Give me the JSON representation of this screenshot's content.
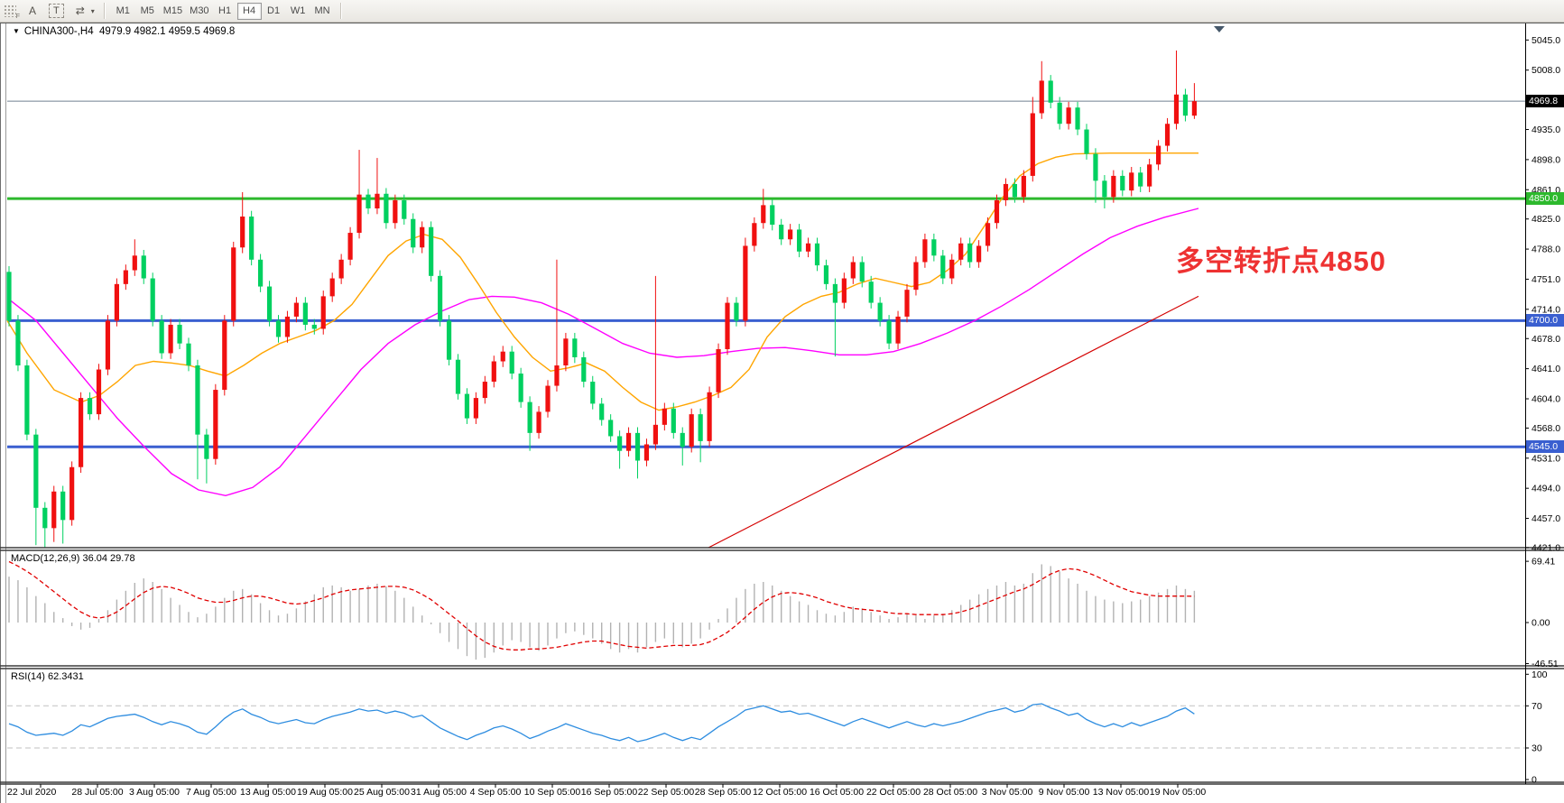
{
  "toolbar": {
    "drag_handle_label": "F",
    "buttons": [
      {
        "label": "A"
      },
      {
        "label": "T"
      },
      {
        "label": "⇄"
      },
      {
        "label": "▾"
      }
    ],
    "active_timeframe": "H4",
    "timeframes": [
      {
        "label": "M1"
      },
      {
        "label": "M5"
      },
      {
        "label": "M15"
      },
      {
        "label": "M30"
      },
      {
        "label": "H1"
      },
      {
        "label": "H4"
      },
      {
        "label": "D1"
      },
      {
        "label": "W1"
      },
      {
        "label": "MN"
      }
    ]
  },
  "chart": {
    "title_marker": "▼",
    "title_symbol": "CHINA300-,H4",
    "title_ohlc": "4979.9 4982.1 4959.5 4969.8",
    "shift_marker": "▼"
  },
  "annotation": {
    "text": "多空转折点4850",
    "color": "#ee3232"
  },
  "levels": {
    "current": {
      "label": "4969.8",
      "price": 4969.8,
      "color": "#000000",
      "line_color": "#708090"
    },
    "resistance_green": {
      "label": "4850.0",
      "price": 4850,
      "color": "#2db92d"
    },
    "support_blue_1": {
      "label": "4700.0",
      "price": 4700,
      "color": "#3a5fd0"
    },
    "support_blue_2": {
      "label": "4545.0",
      "price": 4545,
      "color": "#3a5fd0"
    }
  },
  "price_axis": {
    "ticks": [
      {
        "label": "5045.0",
        "price": 5045
      },
      {
        "label": "5008.0",
        "price": 5008
      },
      {
        "label": "4935.0",
        "price": 4935
      },
      {
        "label": "4898.0",
        "price": 4898
      },
      {
        "label": "4861.0",
        "price": 4861
      },
      {
        "label": "4825.0",
        "price": 4825
      },
      {
        "label": "4788.0",
        "price": 4788
      },
      {
        "label": "4751.0",
        "price": 4751
      },
      {
        "label": "4714.0",
        "price": 4714
      },
      {
        "label": "4678.0",
        "price": 4678
      },
      {
        "label": "4641.0",
        "price": 4641
      },
      {
        "label": "4604.0",
        "price": 4604
      },
      {
        "label": "4568.0",
        "price": 4568
      },
      {
        "label": "4531.0",
        "price": 4531
      },
      {
        "label": "4494.0",
        "price": 4494
      },
      {
        "label": "4457.0",
        "price": 4457
      },
      {
        "label": "4421.0",
        "price": 4421
      }
    ]
  },
  "time_axis": {
    "labels": [
      "22 Jul 2020",
      "28 Jul 05:00",
      "3 Aug 05:00",
      "7 Aug 05:00",
      "13 Aug 05:00",
      "19 Aug 05:00",
      "25 Aug 05:00",
      "31 Aug 05:00",
      "4 Sep 05:00",
      "10 Sep 05:00",
      "16 Sep 05:00",
      "22 Sep 05:00",
      "28 Sep 05:00",
      "12 Oct 05:00",
      "16 Oct 05:00",
      "22 Oct 05:00",
      "28 Oct 05:00",
      "3 Nov 05:00",
      "9 Nov 05:00",
      "13 Nov 05:00",
      "19 Nov 05:00"
    ]
  },
  "macd_panel": {
    "title": "MACD(12,26,9) 36.04 29.78",
    "axis": [
      {
        "label": "69.41",
        "value": 69.41
      },
      {
        "label": "0.00",
        "value": 0
      },
      {
        "label": "-46.51",
        "value": -46.51
      }
    ]
  },
  "rsi_panel": {
    "title": "RSI(14) 62.3431",
    "axis": [
      {
        "label": "100",
        "value": 100
      },
      {
        "label": "70",
        "value": 70
      },
      {
        "label": "30",
        "value": 30
      },
      {
        "label": "0",
        "value": 0
      }
    ],
    "dashed_levels": [
      70,
      30
    ]
  },
  "chart_data": {
    "type": "candlestick",
    "symbol": "CHINA300-",
    "period": "H4",
    "title": "CHINA300-,H4 4979.9 4982.1 4959.5 4969.8",
    "open": 4979.9,
    "high": 4982.1,
    "low": 4959.5,
    "close": 4969.8,
    "ylim": [
      4421,
      5045
    ],
    "candles": {
      "first_open": 4760,
      "default_wick": 7,
      "closes": [
        4700,
        4645,
        4560,
        4470,
        4445,
        4490,
        4455,
        4520,
        4605,
        4585,
        4640,
        4700,
        4745,
        4762,
        4780,
        4752,
        4700,
        4660,
        4695,
        4672,
        4645,
        4560,
        4530,
        4615,
        4700,
        4790,
        4828,
        4775,
        4742,
        4700,
        4680,
        4705,
        4722,
        4695,
        4690,
        4730,
        4752,
        4775,
        4808,
        4855,
        4838,
        4856,
        4820,
        4848,
        4825,
        4790,
        4815,
        4755,
        4700,
        4652,
        4610,
        4580,
        4605,
        4625,
        4650,
        4662,
        4635,
        4600,
        4562,
        4588,
        4620,
        4645,
        4678,
        4655,
        4625,
        4598,
        4578,
        4558,
        4540,
        4562,
        4528,
        4548,
        4572,
        4592,
        4562,
        4545,
        4585,
        4552,
        4612,
        4665,
        4722,
        4700,
        4792,
        4820,
        4842,
        4818,
        4800,
        4812,
        4785,
        4795,
        4768,
        4745,
        4722,
        4752,
        4772,
        4748,
        4722,
        4700,
        4672,
        4705,
        4738,
        4772,
        4800,
        4780,
        4752,
        4775,
        4795,
        4772,
        4792,
        4820,
        4848,
        4868,
        4852,
        4878,
        4955,
        4995,
        4968,
        4942,
        4962,
        4935,
        4905,
        4872,
        4852,
        4878,
        4860,
        4882,
        4865,
        4892,
        4915,
        4942,
        4978,
        4952,
        4969.8
      ],
      "wick_overrides": {
        "3": {
          "low": 4424
        },
        "4": {
          "low": 4421
        },
        "5": {
          "low": 4428
        },
        "6": {
          "low": 4426
        },
        "14": {
          "high": 4800
        },
        "21": {
          "low": 4505
        },
        "22": {
          "low": 4500
        },
        "26": {
          "high": 4858
        },
        "39": {
          "high": 4910
        },
        "41": {
          "high": 4900
        },
        "58": {
          "low": 4540
        },
        "61": {
          "high": 4775
        },
        "68": {
          "low": 4518
        },
        "70": {
          "low": 4506
        },
        "72": {
          "high": 4755
        },
        "75": {
          "low": 4522
        },
        "77": {
          "low": 4526
        },
        "82": {
          "high": 4802
        },
        "84": {
          "high": 4862
        },
        "92": {
          "low": 4656
        },
        "114": {
          "high": 4975
        },
        "115": {
          "high": 5019
        },
        "121": {
          "low": 4845
        },
        "122": {
          "low": 4838
        },
        "130": {
          "high": 5032
        },
        "132": {
          "high": 4992,
          "low": 4948
        }
      },
      "bull_color": "#f01010",
      "bear_color": "#00d060"
    },
    "ma_fast_orange": [
      [
        8,
        4700
      ],
      [
        30,
        4660
      ],
      [
        60,
        4615
      ],
      [
        90,
        4600
      ],
      [
        110,
        4608
      ],
      [
        130,
        4625
      ],
      [
        150,
        4645
      ],
      [
        170,
        4650
      ],
      [
        190,
        4648
      ],
      [
        210,
        4645
      ],
      [
        230,
        4638
      ],
      [
        250,
        4632
      ],
      [
        270,
        4645
      ],
      [
        290,
        4660
      ],
      [
        310,
        4672
      ],
      [
        330,
        4680
      ],
      [
        350,
        4688
      ],
      [
        370,
        4700
      ],
      [
        390,
        4720
      ],
      [
        410,
        4750
      ],
      [
        430,
        4780
      ],
      [
        450,
        4798
      ],
      [
        470,
        4806
      ],
      [
        490,
        4800
      ],
      [
        510,
        4778
      ],
      [
        530,
        4745
      ],
      [
        550,
        4710
      ],
      [
        570,
        4680
      ],
      [
        590,
        4655
      ],
      [
        610,
        4638
      ],
      [
        630,
        4642
      ],
      [
        650,
        4648
      ],
      [
        670,
        4638
      ],
      [
        690,
        4618
      ],
      [
        710,
        4600
      ],
      [
        730,
        4590
      ],
      [
        750,
        4594
      ],
      [
        770,
        4600
      ],
      [
        790,
        4608
      ],
      [
        810,
        4618
      ],
      [
        830,
        4640
      ],
      [
        850,
        4680
      ],
      [
        870,
        4705
      ],
      [
        890,
        4720
      ],
      [
        910,
        4730
      ],
      [
        930,
        4735
      ],
      [
        950,
        4745
      ],
      [
        970,
        4752
      ],
      [
        990,
        4747
      ],
      [
        1010,
        4742
      ],
      [
        1030,
        4747
      ],
      [
        1050,
        4762
      ],
      [
        1070,
        4782
      ],
      [
        1090,
        4815
      ],
      [
        1110,
        4850
      ],
      [
        1130,
        4878
      ],
      [
        1150,
        4893
      ],
      [
        1170,
        4901
      ],
      [
        1190,
        4905
      ],
      [
        1230,
        4906
      ],
      [
        1290,
        4906
      ],
      [
        1328,
        4906
      ]
    ],
    "ma_slow_magenta": [
      [
        8,
        4728
      ],
      [
        40,
        4700
      ],
      [
        70,
        4660
      ],
      [
        100,
        4620
      ],
      [
        130,
        4580
      ],
      [
        160,
        4545
      ],
      [
        190,
        4512
      ],
      [
        220,
        4492
      ],
      [
        250,
        4485
      ],
      [
        280,
        4495
      ],
      [
        310,
        4520
      ],
      [
        340,
        4560
      ],
      [
        370,
        4600
      ],
      [
        400,
        4640
      ],
      [
        430,
        4672
      ],
      [
        460,
        4695
      ],
      [
        490,
        4712
      ],
      [
        520,
        4726
      ],
      [
        545,
        4730
      ],
      [
        570,
        4729
      ],
      [
        600,
        4722
      ],
      [
        630,
        4708
      ],
      [
        660,
        4690
      ],
      [
        690,
        4672
      ],
      [
        720,
        4660
      ],
      [
        750,
        4655
      ],
      [
        780,
        4657
      ],
      [
        810,
        4662
      ],
      [
        840,
        4666
      ],
      [
        870,
        4667
      ],
      [
        900,
        4663
      ],
      [
        930,
        4658
      ],
      [
        960,
        4658
      ],
      [
        990,
        4662
      ],
      [
        1020,
        4672
      ],
      [
        1050,
        4685
      ],
      [
        1080,
        4700
      ],
      [
        1110,
        4718
      ],
      [
        1140,
        4738
      ],
      [
        1170,
        4760
      ],
      [
        1200,
        4782
      ],
      [
        1230,
        4802
      ],
      [
        1260,
        4816
      ],
      [
        1290,
        4827
      ],
      [
        1328,
        4838
      ]
    ],
    "trendline_red": {
      "from": [
        785,
        4421
      ],
      "to": [
        1328,
        4730
      ],
      "color": "#d40000"
    },
    "hlines": [
      {
        "price": 4850,
        "color": "#2db92d",
        "width": 3
      },
      {
        "price": 4700,
        "color": "#3a5fd0",
        "width": 3
      },
      {
        "price": 4545,
        "color": "#3a5fd0",
        "width": 3
      }
    ],
    "macd": {
      "histogram": [
        52,
        48,
        40,
        30,
        22,
        12,
        5,
        -4,
        -8,
        -6,
        4,
        14,
        26,
        36,
        45,
        50,
        46,
        38,
        28,
        20,
        12,
        6,
        10,
        18,
        28,
        36,
        38,
        32,
        22,
        14,
        8,
        10,
        16,
        24,
        32,
        40,
        42,
        40,
        36,
        38,
        42,
        44,
        41,
        36,
        28,
        18,
        8,
        -2,
        -12,
        -22,
        -30,
        -38,
        -42,
        -40,
        -34,
        -26,
        -20,
        -22,
        -28,
        -32,
        -26,
        -18,
        -12,
        -10,
        -14,
        -18,
        -24,
        -30,
        -34,
        -30,
        -34,
        -28,
        -22,
        -18,
        -24,
        -28,
        -24,
        -18,
        -8,
        4,
        16,
        28,
        38,
        44,
        46,
        42,
        36,
        30,
        24,
        20,
        14,
        10,
        8,
        12,
        18,
        16,
        12,
        8,
        4,
        6,
        10,
        8,
        4,
        8,
        10,
        14,
        20,
        26,
        32,
        38,
        42,
        46,
        42,
        44,
        56,
        66,
        64,
        58,
        50,
        44,
        36,
        30,
        26,
        24,
        22,
        24,
        26,
        30,
        34,
        38,
        42,
        38,
        36
      ],
      "signal": [
        69,
        64,
        58,
        51,
        43,
        35,
        27,
        19,
        12,
        7,
        5,
        7,
        12,
        19,
        27,
        34,
        39,
        41,
        40,
        37,
        33,
        28,
        25,
        23,
        23,
        25,
        28,
        30,
        30,
        28,
        25,
        22,
        21,
        22,
        25,
        28,
        32,
        35,
        37,
        38,
        39,
        40,
        41,
        41,
        40,
        37,
        32,
        26,
        18,
        10,
        2,
        -7,
        -15,
        -22,
        -27,
        -30,
        -31,
        -31,
        -30,
        -30,
        -29,
        -28,
        -26,
        -24,
        -22,
        -21,
        -21,
        -23,
        -25,
        -27,
        -28,
        -29,
        -28,
        -27,
        -26,
        -26,
        -26,
        -25,
        -22,
        -17,
        -11,
        -3,
        6,
        15,
        23,
        29,
        33,
        34,
        33,
        31,
        28,
        24,
        21,
        18,
        16,
        15,
        14,
        13,
        11,
        10,
        10,
        9,
        9,
        9,
        9,
        10,
        12,
        15,
        19,
        23,
        27,
        31,
        35,
        38,
        43,
        49,
        55,
        59,
        61,
        60,
        57,
        53,
        48,
        43,
        39,
        35,
        33,
        31,
        30,
        30,
        30,
        30,
        29.8
      ],
      "last_macd": 36.04,
      "last_signal": 29.78
    },
    "rsi": {
      "values": [
        53,
        50,
        45,
        42,
        43,
        44,
        42,
        46,
        52,
        50,
        54,
        58,
        60,
        61,
        62,
        59,
        55,
        52,
        55,
        53,
        50,
        45,
        43,
        50,
        58,
        64,
        67,
        62,
        59,
        55,
        53,
        55,
        57,
        54,
        53,
        57,
        60,
        62,
        64,
        67,
        65,
        66,
        63,
        65,
        63,
        59,
        61,
        55,
        49,
        45,
        41,
        38,
        42,
        45,
        49,
        51,
        48,
        44,
        39,
        42,
        46,
        49,
        53,
        50,
        47,
        44,
        42,
        39,
        37,
        40,
        36,
        38,
        41,
        44,
        40,
        37,
        40,
        38,
        44,
        50,
        55,
        60,
        66,
        68,
        70,
        67,
        64,
        65,
        62,
        63,
        60,
        57,
        54,
        51,
        55,
        58,
        55,
        52,
        49,
        52,
        55,
        52,
        50,
        53,
        51,
        53,
        55,
        58,
        61,
        64,
        66,
        68,
        64,
        66,
        71,
        72,
        68,
        65,
        61,
        63,
        57,
        53,
        50,
        53,
        50,
        54,
        51,
        54,
        57,
        60,
        65,
        68,
        62.3
      ],
      "last": 62.3431,
      "line_color": "#2e8de0"
    }
  }
}
